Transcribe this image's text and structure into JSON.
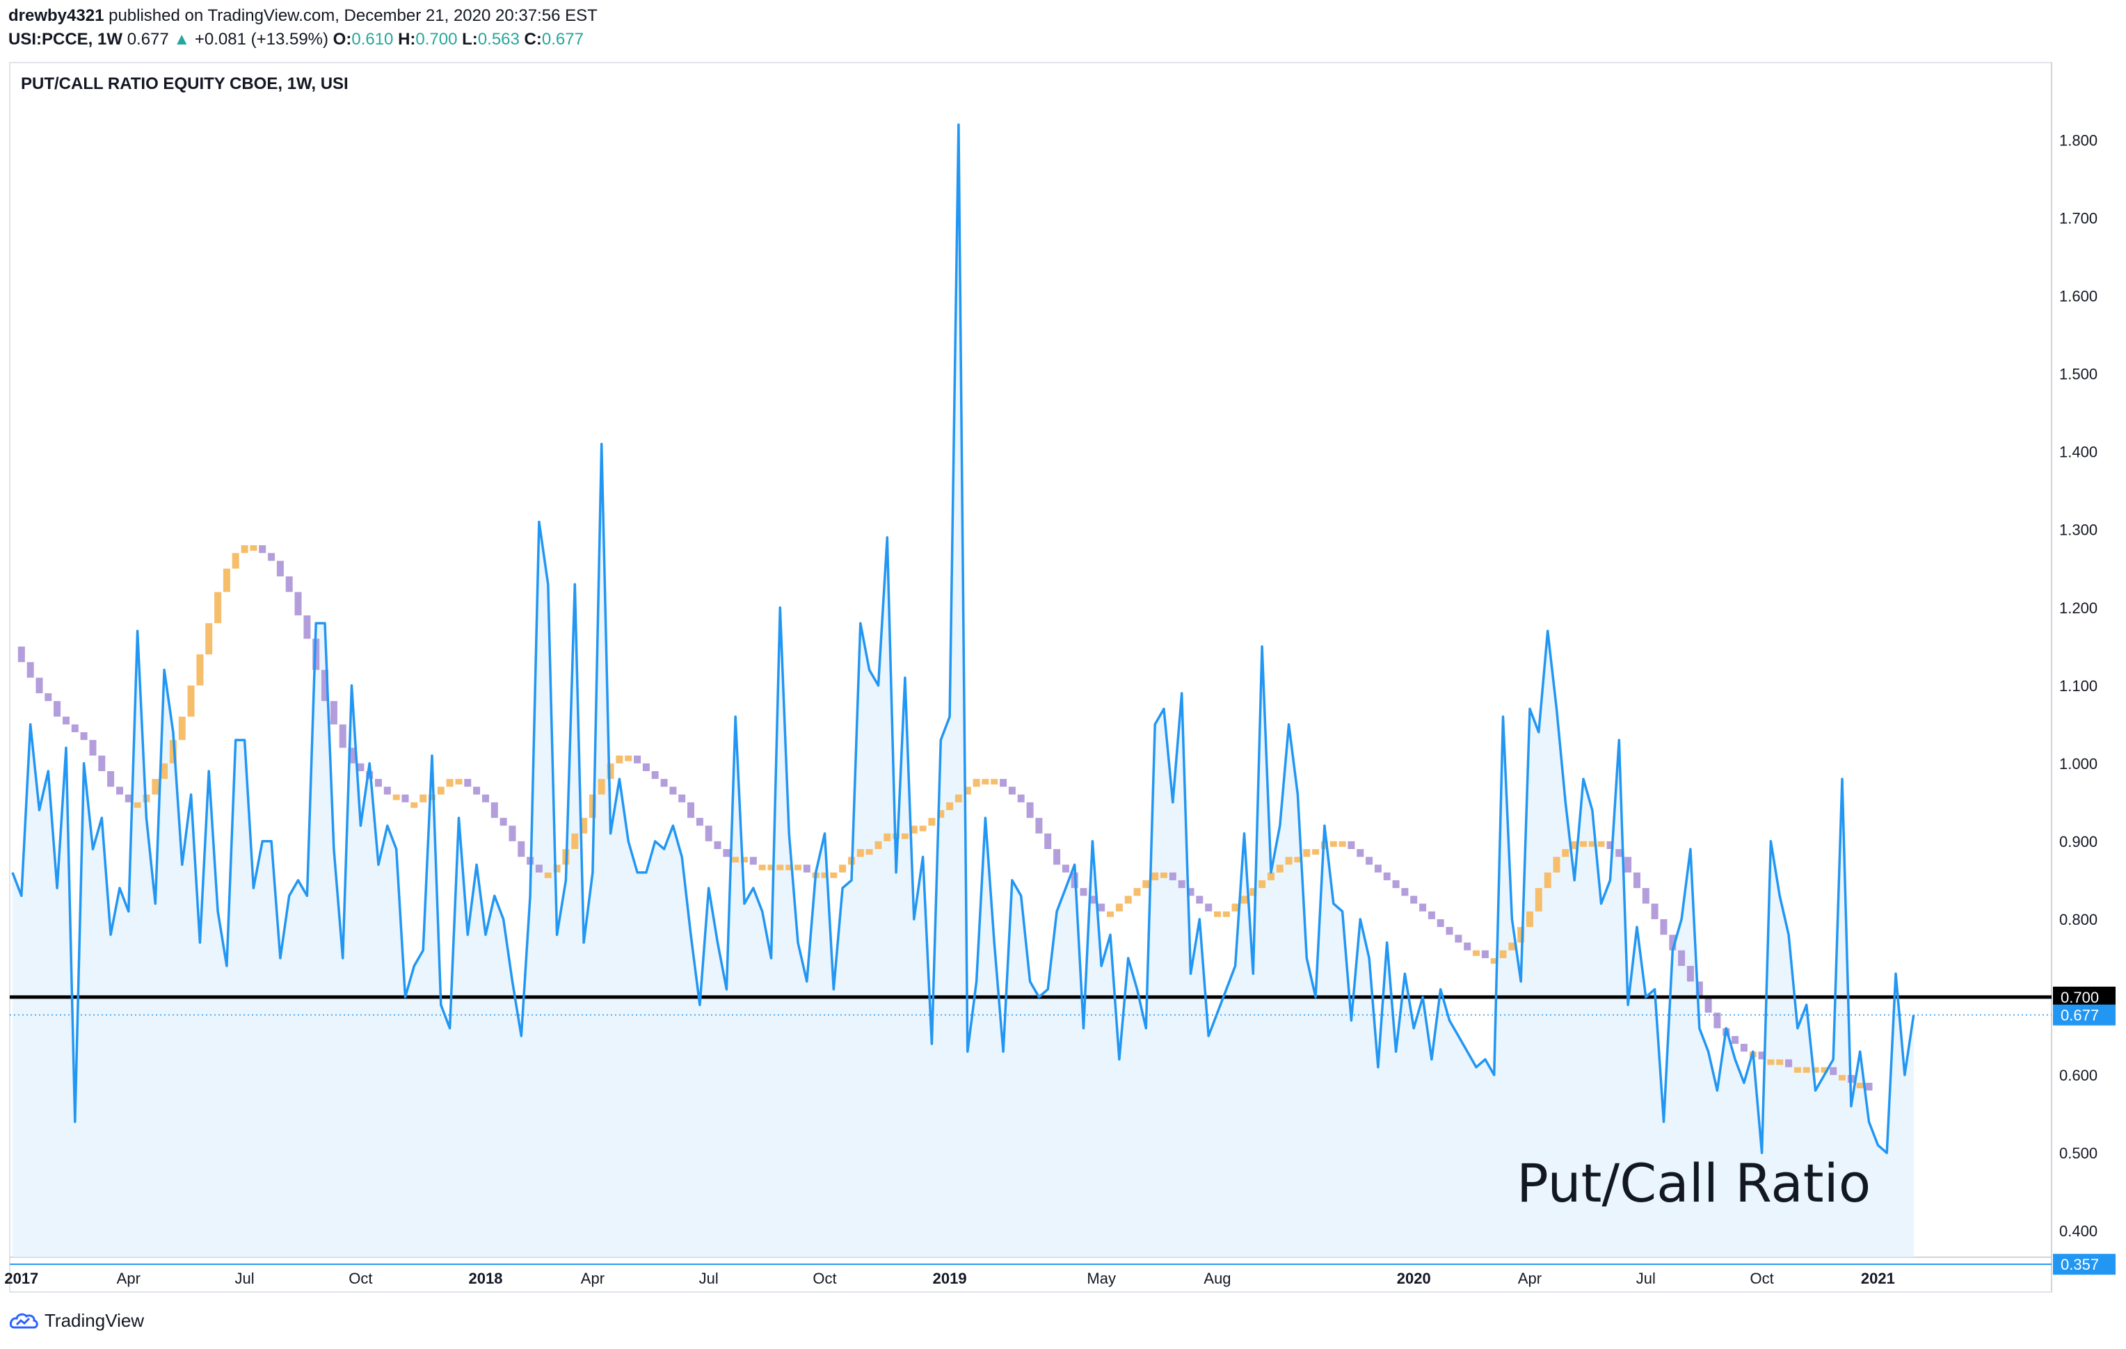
{
  "header": {
    "author": "drewby4321",
    "published_text": "published on TradingView.com, December 21, 2020 20:37:56 EST",
    "symbol": "USI:PCCE, 1W",
    "last": "0.677",
    "change_arrow": "▲",
    "change": "+0.081 (+13.59%)",
    "o_label": "O:",
    "o_value": "0.610",
    "h_label": "H:",
    "h_value": "0.700",
    "l_label": "L:",
    "l_value": "0.563",
    "c_label": "C:",
    "c_value": "0.677"
  },
  "footer": {
    "brand": "TradingView",
    "logo_icon": "tradingview-logo-icon"
  },
  "colors": {
    "series": "#2196f3",
    "area_fill": "#e3f2fd",
    "ma_up": "#f6be6b",
    "ma_down": "#b39ddb",
    "hline": "#000000",
    "low_line": "#2196f3",
    "grid": "#e0e3eb"
  },
  "chart_data": {
    "type": "area",
    "title": "PUT/CALL RATIO EQUITY CBOE, 1W, USI",
    "annotation": "Put/Call Ratio",
    "ylim": [
      0.36,
      1.85
    ],
    "y_ticks": [
      "0.400",
      "0.500",
      "0.600",
      "0.700",
      "0.800",
      "0.900",
      "1.000",
      "1.100",
      "1.200",
      "1.300",
      "1.400",
      "1.500",
      "1.600",
      "1.700",
      "1.800"
    ],
    "x_ticks": [
      {
        "label": "2017",
        "bold": true,
        "week": 1
      },
      {
        "label": "Apr",
        "bold": false,
        "week": 13
      },
      {
        "label": "Jul",
        "bold": false,
        "week": 26
      },
      {
        "label": "Oct",
        "bold": false,
        "week": 39
      },
      {
        "label": "2018",
        "bold": true,
        "week": 53
      },
      {
        "label": "Apr",
        "bold": false,
        "week": 65
      },
      {
        "label": "Jul",
        "bold": false,
        "week": 78
      },
      {
        "label": "Oct",
        "bold": false,
        "week": 91
      },
      {
        "label": "2019",
        "bold": true,
        "week": 105
      },
      {
        "label": "May",
        "bold": false,
        "week": 122
      },
      {
        "label": "Aug",
        "bold": false,
        "week": 135
      },
      {
        "label": "2020",
        "bold": true,
        "week": 157
      },
      {
        "label": "Apr",
        "bold": false,
        "week": 170
      },
      {
        "label": "Jul",
        "bold": false,
        "week": 183
      },
      {
        "label": "Oct",
        "bold": false,
        "week": 196
      },
      {
        "label": "2021",
        "bold": true,
        "week": 209
      }
    ],
    "week_range": [
      0,
      218
    ],
    "grid": false,
    "price_labels": [
      {
        "value": 0.7,
        "text": "0.700",
        "color": "#000000"
      },
      {
        "value": 0.677,
        "text": "0.677",
        "color": "#2196f3"
      },
      {
        "value": 0.357,
        "text": "0.357",
        "color": "#2196f3"
      }
    ],
    "hlines": [
      {
        "value": 0.7,
        "color": "#000000"
      },
      {
        "value": 0.357,
        "color": "#2196f3"
      }
    ],
    "last_value_line": 0.677,
    "series": [
      {
        "name": "",
        "values": [
          0.86,
          0.83,
          1.05,
          0.94,
          0.99,
          0.84,
          1.02,
          0.54,
          1.0,
          0.89,
          0.93,
          0.78,
          0.84,
          0.81,
          1.17,
          0.93,
          0.82,
          1.12,
          1.04,
          0.87,
          0.96,
          0.77,
          0.99,
          0.81,
          0.74,
          1.03,
          1.03,
          0.84,
          0.9,
          0.9,
          0.75,
          0.83,
          0.85,
          0.83,
          1.18,
          1.18,
          0.89,
          0.75,
          1.1,
          0.92,
          1.0,
          0.87,
          0.92,
          0.89,
          0.7,
          0.74,
          0.76,
          1.01,
          0.69,
          0.66,
          0.93,
          0.78,
          0.87,
          0.78,
          0.83,
          0.8,
          0.72,
          0.65,
          0.83,
          1.31,
          1.23,
          0.78,
          0.85,
          1.23,
          0.77,
          0.86,
          1.41,
          0.91,
          0.98,
          0.9,
          0.86,
          0.86,
          0.9,
          0.89,
          0.92,
          0.88,
          0.78,
          0.69,
          0.84,
          0.77,
          0.71,
          1.06,
          0.82,
          0.84,
          0.81,
          0.75,
          1.2,
          0.91,
          0.77,
          0.72,
          0.86,
          0.91,
          0.71,
          0.84,
          0.85,
          1.18,
          1.12,
          1.1,
          1.29,
          0.86,
          1.11,
          0.8,
          0.88,
          0.64,
          1.03,
          1.06,
          1.82,
          0.63,
          0.72,
          0.93,
          0.77,
          0.63,
          0.85,
          0.83,
          0.72,
          0.7,
          0.71,
          0.81,
          0.84,
          0.87,
          0.66,
          0.9,
          0.74,
          0.78,
          0.62,
          0.75,
          0.71,
          0.66,
          1.05,
          1.07,
          0.95,
          1.09,
          0.73,
          0.8,
          0.65,
          0.68,
          0.71,
          0.74,
          0.91,
          0.73,
          1.15,
          0.86,
          0.92,
          1.05,
          0.96,
          0.75,
          0.7,
          0.92,
          0.82,
          0.81,
          0.67,
          0.8,
          0.75,
          0.61,
          0.77,
          0.63,
          0.73,
          0.66,
          0.7,
          0.62,
          0.71,
          0.67,
          0.65,
          0.63,
          0.61,
          0.62,
          0.6,
          1.06,
          0.8,
          0.72,
          1.07,
          1.04,
          1.17,
          1.07,
          0.95,
          0.85,
          0.98,
          0.94,
          0.82,
          0.85,
          1.03,
          0.69,
          0.79,
          0.7,
          0.71,
          0.54,
          0.76,
          0.8,
          0.89,
          0.66,
          0.63,
          0.58,
          0.66,
          0.62,
          0.59,
          0.63,
          0.5,
          0.9,
          0.83,
          0.78,
          0.66,
          0.69,
          0.58,
          0.6,
          0.62,
          0.98,
          0.56,
          0.63,
          0.54,
          0.51,
          0.5,
          0.73,
          0.6,
          0.677
        ]
      },
      {
        "name": "",
        "values": [
          1.15,
          1.13,
          1.11,
          1.09,
          1.08,
          1.06,
          1.05,
          1.04,
          1.03,
          1.01,
          0.99,
          0.97,
          0.96,
          0.95,
          0.95,
          0.96,
          0.98,
          1.0,
          1.03,
          1.06,
          1.1,
          1.14,
          1.18,
          1.22,
          1.25,
          1.27,
          1.28,
          1.28,
          1.27,
          1.26,
          1.24,
          1.22,
          1.19,
          1.16,
          1.12,
          1.08,
          1.05,
          1.02,
          1.0,
          0.99,
          0.98,
          0.97,
          0.96,
          0.96,
          0.95,
          0.95,
          0.96,
          0.96,
          0.97,
          0.98,
          0.98,
          0.97,
          0.96,
          0.95,
          0.93,
          0.92,
          0.9,
          0.88,
          0.87,
          0.86,
          0.86,
          0.87,
          0.89,
          0.91,
          0.93,
          0.96,
          0.98,
          1.0,
          1.01,
          1.01,
          1.0,
          0.99,
          0.98,
          0.97,
          0.96,
          0.95,
          0.93,
          0.92,
          0.9,
          0.89,
          0.88,
          0.88,
          0.88,
          0.87,
          0.87,
          0.87,
          0.87,
          0.87,
          0.87,
          0.86,
          0.86,
          0.86,
          0.86,
          0.87,
          0.88,
          0.89,
          0.89,
          0.9,
          0.91,
          0.91,
          0.91,
          0.92,
          0.92,
          0.93,
          0.94,
          0.95,
          0.96,
          0.97,
          0.98,
          0.98,
          0.98,
          0.97,
          0.96,
          0.95,
          0.93,
          0.91,
          0.89,
          0.87,
          0.86,
          0.84,
          0.83,
          0.82,
          0.81,
          0.81,
          0.82,
          0.83,
          0.84,
          0.85,
          0.86,
          0.86,
          0.85,
          0.84,
          0.83,
          0.82,
          0.81,
          0.81,
          0.81,
          0.82,
          0.83,
          0.84,
          0.85,
          0.86,
          0.87,
          0.88,
          0.88,
          0.89,
          0.89,
          0.9,
          0.9,
          0.9,
          0.89,
          0.88,
          0.87,
          0.86,
          0.85,
          0.84,
          0.83,
          0.82,
          0.81,
          0.8,
          0.79,
          0.78,
          0.77,
          0.76,
          0.76,
          0.75,
          0.75,
          0.76,
          0.77,
          0.79,
          0.81,
          0.84,
          0.86,
          0.88,
          0.89,
          0.9,
          0.9,
          0.9,
          0.9,
          0.89,
          0.88,
          0.86,
          0.84,
          0.82,
          0.8,
          0.78,
          0.76,
          0.74,
          0.72,
          0.7,
          0.68,
          0.66,
          0.65,
          0.64,
          0.63,
          0.63,
          0.62,
          0.62,
          0.62,
          0.61,
          0.61,
          0.61,
          0.61,
          0.61,
          0.6,
          0.6,
          0.59,
          0.59,
          0.58
        ]
      }
    ]
  }
}
